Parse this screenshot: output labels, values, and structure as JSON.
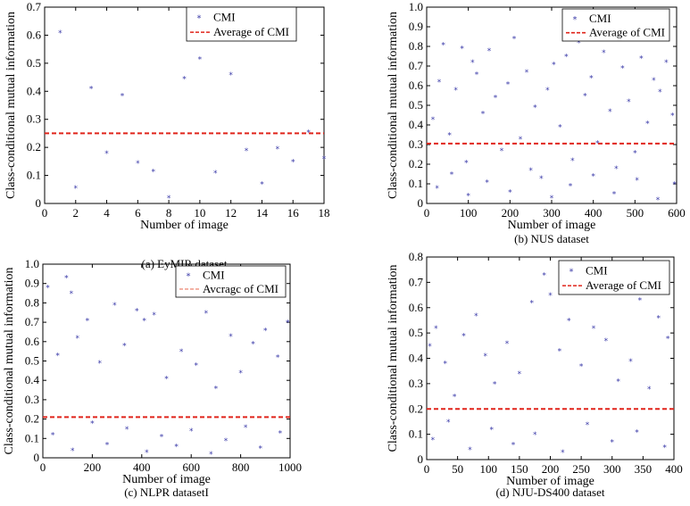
{
  "chart_data": [
    {
      "type": "scatter",
      "caption": "(a) EyMIR dataset",
      "xlabel": "Number of image",
      "ylabel": "Class-conditional mutual information",
      "xlim": [
        0,
        18
      ],
      "ylim": [
        0,
        0.7
      ],
      "xticks": [
        "0",
        "2",
        "4",
        "6",
        "8",
        "10",
        "12",
        "14",
        "16",
        "18"
      ],
      "yticks": [
        "0",
        "0.1",
        "0.2",
        "0.3",
        "0.4",
        "0.5",
        "0.6",
        "0.7"
      ],
      "legend": [
        "CMI",
        "Average of CMI"
      ],
      "average": 0.25,
      "points": [
        [
          1,
          0.61
        ],
        [
          2,
          0.055
        ],
        [
          3,
          0.41
        ],
        [
          4,
          0.18
        ],
        [
          5,
          0.385
        ],
        [
          6,
          0.145
        ],
        [
          7,
          0.115
        ],
        [
          8,
          0.02
        ],
        [
          9,
          0.445
        ],
        [
          10,
          0.515
        ],
        [
          11,
          0.11
        ],
        [
          12,
          0.46
        ],
        [
          13,
          0.19
        ],
        [
          14,
          0.07
        ],
        [
          15,
          0.195
        ],
        [
          16,
          0.15
        ],
        [
          17,
          0.255
        ],
        [
          18,
          0.16
        ]
      ]
    },
    {
      "type": "scatter",
      "caption": "(b) NUS dataset",
      "xlabel": "Number of image",
      "ylabel": "Class-conditional mutual information",
      "xlim": [
        0,
        600
      ],
      "ylim": [
        0,
        1.0
      ],
      "xticks": [
        "0",
        "100",
        "200",
        "300",
        "400",
        "500",
        "600"
      ],
      "yticks": [
        "0",
        "0.1",
        "0.2",
        "0.3",
        "0.4",
        "0.5",
        "0.6",
        "0.7",
        "0.8",
        "0.9",
        "1.0"
      ],
      "legend": [
        "CMI",
        "Average of CMI"
      ],
      "average": 0.305,
      "points": [
        [
          15,
          0.43
        ],
        [
          30,
          0.62
        ],
        [
          40,
          0.81
        ],
        [
          55,
          0.35
        ],
        [
          70,
          0.58
        ],
        [
          85,
          0.79
        ],
        [
          95,
          0.21
        ],
        [
          110,
          0.72
        ],
        [
          120,
          0.66
        ],
        [
          135,
          0.46
        ],
        [
          150,
          0.78
        ],
        [
          165,
          0.54
        ],
        [
          180,
          0.27
        ],
        [
          195,
          0.61
        ],
        [
          210,
          0.84
        ],
        [
          225,
          0.33
        ],
        [
          240,
          0.67
        ],
        [
          260,
          0.49
        ],
        [
          275,
          0.13
        ],
        [
          290,
          0.58
        ],
        [
          305,
          0.71
        ],
        [
          320,
          0.39
        ],
        [
          335,
          0.75
        ],
        [
          350,
          0.22
        ],
        [
          365,
          0.82
        ],
        [
          380,
          0.55
        ],
        [
          395,
          0.64
        ],
        [
          410,
          0.31
        ],
        [
          425,
          0.77
        ],
        [
          440,
          0.47
        ],
        [
          455,
          0.18
        ],
        [
          470,
          0.69
        ],
        [
          485,
          0.52
        ],
        [
          500,
          0.26
        ],
        [
          515,
          0.74
        ],
        [
          530,
          0.41
        ],
        [
          545,
          0.63
        ],
        [
          560,
          0.57
        ],
        [
          575,
          0.72
        ],
        [
          590,
          0.45
        ],
        [
          25,
          0.08
        ],
        [
          60,
          0.15
        ],
        [
          100,
          0.04
        ],
        [
          145,
          0.11
        ],
        [
          200,
          0.06
        ],
        [
          250,
          0.17
        ],
        [
          300,
          0.03
        ],
        [
          345,
          0.09
        ],
        [
          400,
          0.14
        ],
        [
          450,
          0.05
        ],
        [
          505,
          0.12
        ],
        [
          555,
          0.02
        ],
        [
          595,
          0.1
        ]
      ]
    },
    {
      "type": "scatter",
      "caption": "(c) NLPR datasetI",
      "xlabel": "Number of image",
      "ylabel": "Class-conditional mutual information",
      "xlim": [
        0,
        1000
      ],
      "ylim": [
        0,
        1.0
      ],
      "xticks": [
        "0",
        "200",
        "400",
        "600",
        "800",
        "1000"
      ],
      "yticks": [
        "0",
        "0.1",
        "0.2",
        "0.3",
        "0.4",
        "0.5",
        "0.6",
        "0.7",
        "0.8",
        "0.9",
        "1.0"
      ],
      "legend": [
        "CMI",
        "Avcragc of CMI"
      ],
      "average": 0.21,
      "points": [
        [
          20,
          0.88
        ],
        [
          60,
          0.53
        ],
        [
          95,
          0.93
        ],
        [
          115,
          0.85
        ],
        [
          140,
          0.62
        ],
        [
          180,
          0.71
        ],
        [
          230,
          0.49
        ],
        [
          290,
          0.79
        ],
        [
          330,
          0.58
        ],
        [
          380,
          0.76
        ],
        [
          410,
          0.71
        ],
        [
          450,
          0.74
        ],
        [
          500,
          0.41
        ],
        [
          560,
          0.55
        ],
        [
          620,
          0.48
        ],
        [
          660,
          0.75
        ],
        [
          700,
          0.36
        ],
        [
          760,
          0.63
        ],
        [
          800,
          0.44
        ],
        [
          850,
          0.59
        ],
        [
          900,
          0.66
        ],
        [
          950,
          0.52
        ],
        [
          990,
          0.7
        ],
        [
          40,
          0.12
        ],
        [
          120,
          0.04
        ],
        [
          200,
          0.18
        ],
        [
          260,
          0.07
        ],
        [
          340,
          0.15
        ],
        [
          420,
          0.03
        ],
        [
          480,
          0.11
        ],
        [
          540,
          0.06
        ],
        [
          600,
          0.14
        ],
        [
          680,
          0.02
        ],
        [
          740,
          0.09
        ],
        [
          820,
          0.16
        ],
        [
          880,
          0.05
        ],
        [
          960,
          0.13
        ]
      ]
    },
    {
      "type": "scatter",
      "caption": "(d) NJU-DS400 dataset",
      "xlabel": "Number of image",
      "ylabel": "Class-conditional mutual information",
      "xlim": [
        0,
        400
      ],
      "ylim": [
        0,
        0.8
      ],
      "xticks": [
        "0",
        "50",
        "100",
        "150",
        "200",
        "250",
        "300",
        "350",
        "400"
      ],
      "yticks": [
        "0",
        "0.1",
        "0.2",
        "0.3",
        "0.4",
        "0.5",
        "0.6",
        "0.7",
        "0.8"
      ],
      "legend": [
        "CMI",
        "Average of CMI"
      ],
      "average": 0.2,
      "points": [
        [
          5,
          0.45
        ],
        [
          15,
          0.52
        ],
        [
          30,
          0.38
        ],
        [
          45,
          0.25
        ],
        [
          60,
          0.49
        ],
        [
          80,
          0.57
        ],
        [
          95,
          0.41
        ],
        [
          110,
          0.3
        ],
        [
          130,
          0.46
        ],
        [
          150,
          0.34
        ],
        [
          170,
          0.62
        ],
        [
          190,
          0.73
        ],
        [
          200,
          0.65
        ],
        [
          215,
          0.43
        ],
        [
          230,
          0.55
        ],
        [
          250,
          0.37
        ],
        [
          270,
          0.52
        ],
        [
          290,
          0.47
        ],
        [
          310,
          0.31
        ],
        [
          330,
          0.39
        ],
        [
          345,
          0.63
        ],
        [
          360,
          0.28
        ],
        [
          375,
          0.56
        ],
        [
          390,
          0.48
        ],
        [
          10,
          0.08
        ],
        [
          35,
          0.15
        ],
        [
          70,
          0.04
        ],
        [
          105,
          0.12
        ],
        [
          140,
          0.06
        ],
        [
          175,
          0.1
        ],
        [
          220,
          0.03
        ],
        [
          260,
          0.14
        ],
        [
          300,
          0.07
        ],
        [
          340,
          0.11
        ],
        [
          385,
          0.05
        ]
      ]
    }
  ]
}
